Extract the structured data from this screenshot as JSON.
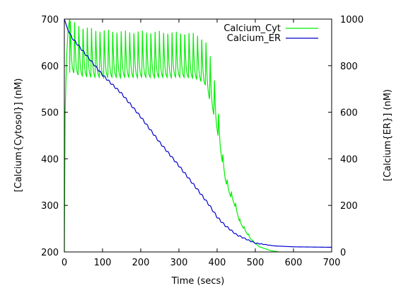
{
  "chart_data": {
    "type": "line",
    "xlabel": "Time (secs)",
    "ylabel_left": "[Calcium{Cytosol}] (nM)",
    "ylabel_right": "[Calcium{ER}] (nM)",
    "xlim": [
      0,
      700
    ],
    "ylim_left": [
      200,
      700
    ],
    "ylim_right": [
      0,
      1000
    ],
    "xticks": [
      0,
      100,
      200,
      300,
      400,
      500,
      600,
      700
    ],
    "yticks_left": [
      200,
      300,
      400,
      500,
      600,
      700
    ],
    "yticks_right": [
      0,
      200,
      400,
      600,
      800,
      1000
    ],
    "legend_position": "top-right",
    "grid": false,
    "series": [
      {
        "name": "Calcium_Cyt",
        "axis": "left",
        "color": "#00ee00",
        "model": {
          "onset": [
            [
              0,
              200
            ],
            [
              2,
              500
            ],
            [
              6,
              620
            ],
            [
              10,
              680
            ],
            [
              14,
              700
            ]
          ],
          "oscillation": {
            "start": 14,
            "period": 11.1,
            "segments": [
              {
                "t": 14,
                "peak": 700,
                "trough": 585
              },
              {
                "t": 40,
                "peak": 690,
                "trough": 575
              },
              {
                "t": 80,
                "peak": 680,
                "trough": 572
              },
              {
                "t": 150,
                "peak": 677,
                "trough": 572
              },
              {
                "t": 250,
                "peak": 676,
                "trough": 572
              },
              {
                "t": 330,
                "peak": 673,
                "trough": 572
              },
              {
                "t": 355,
                "peak": 668,
                "trough": 565
              },
              {
                "t": 370,
                "peak": 655,
                "trough": 555
              },
              {
                "t": 380,
                "peak": 630,
                "trough": 525
              },
              {
                "t": 392,
                "peak": 580,
                "trough": 490
              },
              {
                "t": 402,
                "peak": 520,
                "trough": 450
              },
              {
                "t": 412,
                "peak": 430,
                "trough": 400
              },
              {
                "t": 422,
                "peak": 368,
                "trough": 352
              },
              {
                "t": 432,
                "peak": 340,
                "trough": 325
              },
              {
                "t": 445,
                "peak": 315,
                "trough": 302
              },
              {
                "t": 460,
                "peak": 270,
                "trough": 262
              },
              {
                "t": 475,
                "peak": 248,
                "trough": 243
              },
              {
                "t": 490,
                "peak": 228,
                "trough": 225
              },
              {
                "t": 510,
                "peak": 212,
                "trough": 211
              },
              {
                "t": 540,
                "peak": 203,
                "trough": 203
              },
              {
                "t": 562,
                "peak": 200,
                "trough": 200
              }
            ],
            "end": 562
          }
        }
      },
      {
        "name": "Calcium_ER",
        "axis": "right",
        "color": "#0000cc",
        "points": [
          [
            0,
            1000
          ],
          [
            10,
            950
          ],
          [
            20,
            920
          ],
          [
            50,
            860
          ],
          [
            80,
            800
          ],
          [
            100,
            760
          ],
          [
            150,
            680
          ],
          [
            200,
            580
          ],
          [
            250,
            470
          ],
          [
            300,
            370
          ],
          [
            350,
            265
          ],
          [
            380,
            200
          ],
          [
            400,
            150
          ],
          [
            420,
            115
          ],
          [
            450,
            75
          ],
          [
            480,
            52
          ],
          [
            500,
            38
          ],
          [
            550,
            26
          ],
          [
            600,
            22
          ],
          [
            650,
            21
          ],
          [
            700,
            20
          ]
        ]
      }
    ]
  }
}
